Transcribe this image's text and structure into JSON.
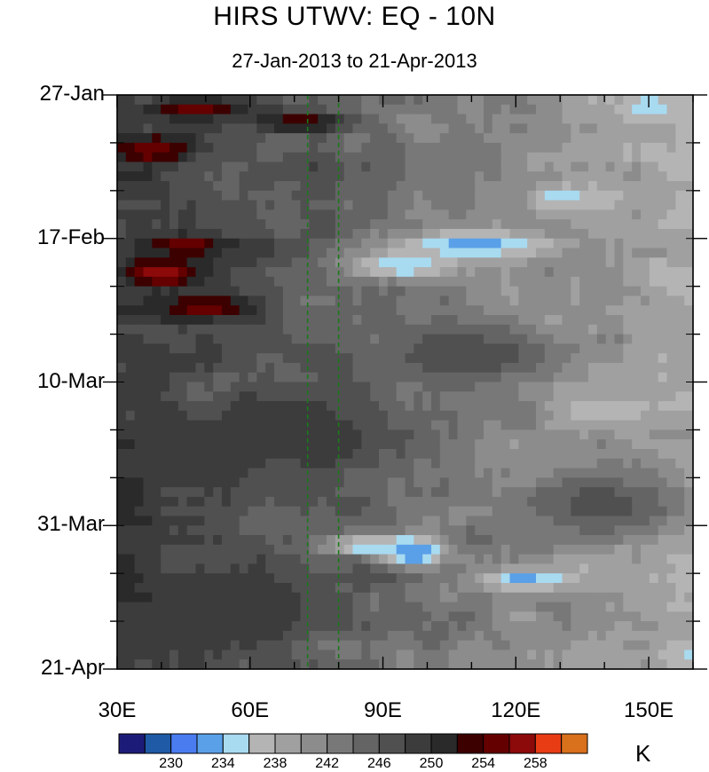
{
  "title": "HIRS UTWV: EQ - 10N",
  "subtitle": "27-Jan-2013 to 21-Apr-2013",
  "units": "K",
  "chart_data": {
    "type": "heatmap",
    "x_ticks": [
      "30E",
      "60E",
      "90E",
      "120E",
      "150E"
    ],
    "x_tick_values": [
      30,
      60,
      90,
      120,
      150
    ],
    "x_range": [
      30,
      160
    ],
    "y_ticks": [
      "27-Jan",
      "17-Feb",
      "10-Mar",
      "31-Mar",
      "21-Apr"
    ],
    "y_tick_days": [
      0,
      21,
      42,
      63,
      84
    ],
    "y_range_days": [
      0,
      84
    ],
    "reference_lines_lon": [
      73,
      80
    ],
    "colorbar": {
      "levels": [
        228,
        230,
        232,
        234,
        236,
        238,
        240,
        242,
        244,
        246,
        248,
        250,
        252,
        254,
        256,
        258,
        260
      ],
      "labels": [
        "230",
        "234",
        "238",
        "242",
        "246",
        "250",
        "254",
        "258"
      ],
      "label_values": [
        230,
        234,
        238,
        242,
        246,
        250,
        254,
        258
      ],
      "colors": [
        "#1c1c78",
        "#1f5aa6",
        "#4a7cf0",
        "#5aa0e8",
        "#a8daf0",
        "#b4b4b4",
        "#a0a0a0",
        "#8c8c8c",
        "#787878",
        "#646464",
        "#505050",
        "#3c3c3c",
        "#2a2a2a",
        "#3c0000",
        "#640000",
        "#8c0a0a",
        "#e83c14",
        "#d8701c"
      ]
    },
    "features": [
      {
        "lon": 48,
        "day": 2,
        "value": 255,
        "spread_lon": 12,
        "spread_day": 1.5
      },
      {
        "lon": 72,
        "day": 4,
        "value": 254,
        "spread_lon": 10,
        "spread_day": 1.5
      },
      {
        "lon": 38,
        "day": 8,
        "value": 256,
        "spread_lon": 9,
        "spread_day": 2
      },
      {
        "lon": 40,
        "day": 26,
        "value": 258,
        "spread_lon": 9,
        "spread_day": 2
      },
      {
        "lon": 45,
        "day": 22,
        "value": 255,
        "spread_lon": 10,
        "spread_day": 1.5
      },
      {
        "lon": 50,
        "day": 31,
        "value": 255,
        "spread_lon": 12,
        "spread_day": 2
      },
      {
        "lon": 110,
        "day": 22,
        "value": 233,
        "spread_lon": 18,
        "spread_day": 2
      },
      {
        "lon": 95,
        "day": 25,
        "value": 234,
        "spread_lon": 14,
        "spread_day": 2
      },
      {
        "lon": 150,
        "day": 2,
        "value": 234,
        "spread_lon": 6,
        "spread_day": 2
      },
      {
        "lon": 130,
        "day": 15,
        "value": 235,
        "spread_lon": 8,
        "spread_day": 2
      },
      {
        "lon": 140,
        "day": 46,
        "value": 236,
        "spread_lon": 10,
        "spread_day": 2
      },
      {
        "lon": 97,
        "day": 67,
        "value": 230,
        "spread_lon": 6,
        "spread_day": 2
      },
      {
        "lon": 88,
        "day": 66,
        "value": 233,
        "spread_lon": 12,
        "spread_day": 1.5
      },
      {
        "lon": 122,
        "day": 71,
        "value": 233,
        "spread_lon": 10,
        "spread_day": 1.5
      },
      {
        "lon": 70,
        "day": 50,
        "value": 250,
        "spread_lon": 25,
        "spread_day": 6
      },
      {
        "lon": 110,
        "day": 38,
        "value": 248,
        "spread_lon": 20,
        "spread_day": 4
      },
      {
        "lon": 55,
        "day": 75,
        "value": 250,
        "spread_lon": 25,
        "spread_day": 5
      },
      {
        "lon": 140,
        "day": 60,
        "value": 247,
        "spread_lon": 20,
        "spread_day": 5
      }
    ]
  }
}
